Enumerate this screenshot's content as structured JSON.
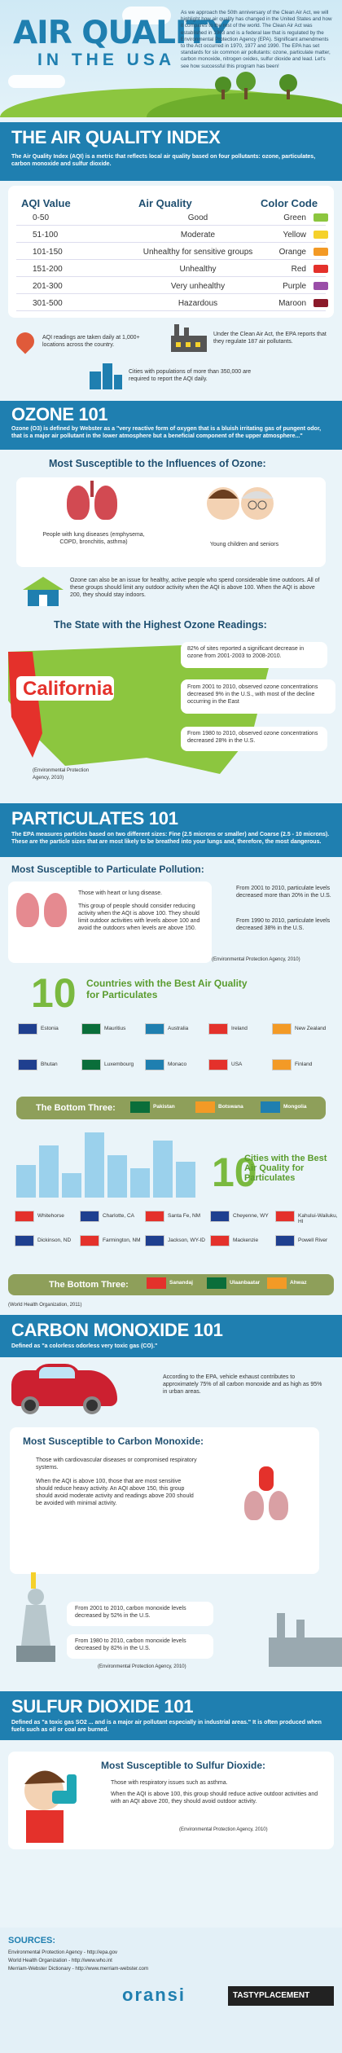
{
  "header": {
    "title": "AIR QUALITY",
    "subtitle": "IN THE USA",
    "intro": "As we approach the 50th anniversary of the Clean Air Act, we will highlight how air quality has changed in the United States and how it compares to the rest of the world. The Clean Air Act was established in 1963 and is a federal law that is regulated by the Environmental Protection Agency (EPA). Significant amendments to the Act occurred in 1970, 1977 and 1990. The EPA has set standards for six common air pollutants: ozone, particulate matter, carbon monoxide, nitrogen oxides, sulfur dioxide and lead. Let's see how successful this program has been!"
  },
  "aqi": {
    "title": "THE AIR QUALITY INDEX",
    "description": "The Air Quality Index (AQI) is a metric that reflects local air quality based on four pollutants: ozone, particulates, carbon monoxide and sulfur dioxide.",
    "headers": [
      "AQI Value",
      "Air Quality",
      "Color Code"
    ],
    "rows": [
      {
        "value": "0-50",
        "quality": "Good",
        "color": "Green",
        "hex": "#8cc63f"
      },
      {
        "value": "51-100",
        "quality": "Moderate",
        "color": "Yellow",
        "hex": "#f5d12b"
      },
      {
        "value": "101-150",
        "quality": "Unhealthy for sensitive groups",
        "color": "Orange",
        "hex": "#f39a26"
      },
      {
        "value": "151-200",
        "quality": "Unhealthy",
        "color": "Red",
        "hex": "#e4312b"
      },
      {
        "value": "201-300",
        "quality": "Very unhealthy",
        "color": "Purple",
        "hex": "#9a4ea8"
      },
      {
        "value": "301-500",
        "quality": "Hazardous",
        "color": "Maroon",
        "hex": "#8b1a2a"
      }
    ],
    "fact1": "AQI readings are taken daily at 1,000+ locations across the country.",
    "fact2": "Under the Clean Air Act, the EPA reports that they regulate 187 air pollutants.",
    "fact3": "Cities with populations of more than 350,000 are required to report the AQI daily."
  },
  "ozone": {
    "title": "OZONE 101",
    "description": "Ozone (O3) is defined by Webster as a \"very reactive form of oxygen that is a bluish irritating gas of pungent odor, that is a major air pollutant in the lower atmosphere but a beneficial component of the upper atmosphere...\"",
    "susceptible_title": "Most Susceptible to the Influences of Ozone:",
    "group1": "People with lung diseases (emphysema, COPD, bronchitis, asthma)",
    "group2": "Young children and seniors",
    "active_note": "Ozone can also be an issue for healthy, active people who spend considerable time outdoors. All of these groups should limit any outdoor activity when the AQI is above 100. When the AQI is above 200, they should stay indoors.",
    "state_title": "The State with the Highest Ozone Readings:",
    "state": "California",
    "stat1": "82% of sites reported a significant decrease in ozone from 2001-2003 to 2008-2010.",
    "stat2": "From 2001 to 2010, observed ozone concentrations decreased 9% in the U.S., with most of the decline occurring in the East",
    "stat3": "From 1980 to 2010, observed ozone concentrations decreased 28% in the U.S.",
    "source": "(Environmental Protection Agency, 2010)"
  },
  "particulates": {
    "title": "PARTICULATES 101",
    "description": "The EPA measures particles based on two different sizes: Fine (2.5 microns or smaller) and Coarse (2.5 - 10 microns). These are the particle sizes that are most likely to be breathed into your lungs and, therefore, the most dangerous.",
    "susceptible_title": "Most Susceptible to Particulate Pollution:",
    "bullet1": "Those with heart or lung disease.",
    "bullet2": "This group of people should consider reducing activity when the AQI is above 100. They should limit outdoor activities with levels above 100 and avoid the outdoors when levels are above 150.",
    "stat1": "From 2001 to 2010, particulate levels decreased more than 20% in the U.S.",
    "stat2": "From 1990 to 2010, particulate levels decreased 38% in the U.S.",
    "source": "(Environmental Protection Agency, 2010)",
    "ten_countries_title": "Countries with the Best Air Quality for Particulates",
    "ten": "10",
    "countries": [
      "Estonia",
      "Mauritius",
      "Australia",
      "Ireland",
      "New Zealand",
      "Bhutan",
      "Luxembourg",
      "Monaco",
      "USA",
      "Finland"
    ],
    "bottom_label": "The Bottom Three:",
    "bottom_countries": [
      "Pakistan",
      "Botswana",
      "Mongolia"
    ],
    "ten_cities_title": "Cities with the Best Air Quality for Particulates",
    "cities": [
      "Whitehorse",
      "Charlotte, CA",
      "Santa Fe, NM",
      "Cheyenne, WY",
      "Kahului-Wailuku, HI",
      "Dickinson, ND",
      "Farmington, NM",
      "Jackson, WY-ID",
      "Mackenzie",
      "Powell River"
    ],
    "bottom_cities": [
      "Sanandaj",
      "Ulaanbaatar",
      "Ahwaz"
    ],
    "who_source": "(World Health Organization, 2011)"
  },
  "co": {
    "title": "CARBON MONOXIDE 101",
    "description": "Defined as \"a colorless odorless very toxic gas (CO).\"",
    "epa_note": "According to the EPA, vehicle exhaust contributes to approximately 75% of all carbon monoxide and as high as 95% in urban areas.",
    "susceptible_title": "Most Susceptible to Carbon Monoxide:",
    "bullet1": "Those with cardiovascular diseases or compromised respiratory systems.",
    "bullet2": "When the AQI is above 100, those that are most sensitive should reduce heavy activity. An AQI above 150, this group should avoid moderate activity and readings above 200 should be avoided with minimal activity.",
    "stat1": "From 2001 to 2010, carbon monoxide levels decreased by 52% in the U.S.",
    "stat2": "From 1980 to 2010, carbon monoxide levels decreased by 82% in the U.S.",
    "source": "(Environmental Protection Agency, 2010)"
  },
  "so2": {
    "title": "SULFUR DIOXIDE 101",
    "description": "Defined as \"a toxic gas SO2 ... and is a major air pollutant especially in industrial areas.\" It is often produced when fuels such as oil or coal are burned.",
    "susceptible_title": "Most Susceptible to Sulfur Dioxide:",
    "bullet1": "Those with respiratory issues such as asthma.",
    "bullet2": "When the AQI is above 100, this group should reduce active outdoor activities and with an AQI above 200, they should avoid outdoor activity.",
    "source": "(Environmental Protection Agency, 2010)"
  },
  "sources": {
    "title": "SOURCES:",
    "line1": "Environmental Protection Agency - http://epa.gov",
    "line2": "World Health Organization - http://www.who.int",
    "line3": "Merriam-Webster Dictionary - http://www.merriam-webster.com",
    "brand1": "oransi",
    "brand2": "TASTYPLACEMENT"
  }
}
